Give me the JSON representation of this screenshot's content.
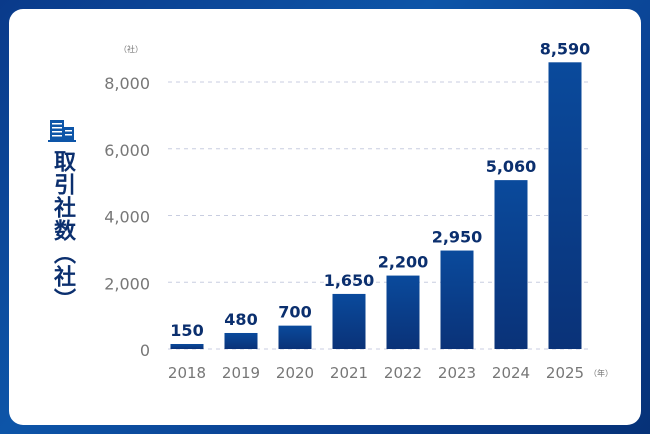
{
  "chart_data": {
    "type": "bar",
    "title": "取引社数（社）",
    "categories": [
      "2018",
      "2019",
      "2020",
      "2021",
      "2022",
      "2023",
      "2024",
      "2025"
    ],
    "values": [
      150,
      480,
      700,
      1650,
      2200,
      2950,
      5060,
      8590
    ],
    "value_labels": [
      "150",
      "480",
      "700",
      "1,650",
      "2,200",
      "2,950",
      "5,060",
      "8,590"
    ],
    "ylim": [
      0,
      8000
    ],
    "yticks": [
      0,
      2000,
      4000,
      6000,
      8000
    ],
    "ytick_labels": [
      "0",
      "2,000",
      "4,000",
      "6,000",
      "8,000"
    ],
    "yunit": "（社）",
    "xunit": "（年）",
    "ylabel": "取引社数（社）",
    "grid": true,
    "bar_color_top": "#0a4a9c",
    "bar_color_bottom": "#0a3278"
  }
}
